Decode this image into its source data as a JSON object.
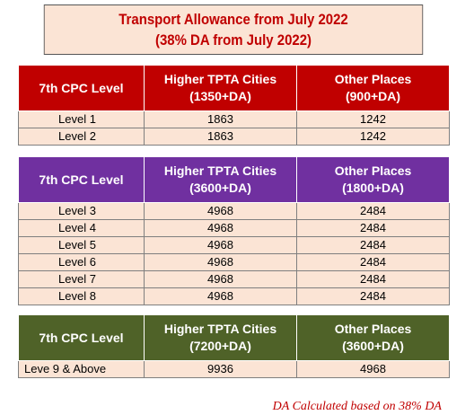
{
  "title": {
    "line1": "Transport Allowance from July 2022",
    "line2": "(38% DA from July 2022)"
  },
  "colors": {
    "title_text": "#c00000",
    "header_red": "#c00000",
    "header_purple": "#7030a0",
    "header_green": "#4f6228",
    "cell_background": "#fbe4d5"
  },
  "tables": [
    {
      "headers": {
        "level": "7th CPC Level",
        "higher_line1": "Higher TPTA Cities",
        "higher_line2": "(1350+DA)",
        "other_line1": "Other Places",
        "other_line2": "(900+DA)"
      },
      "rows": [
        {
          "level": "Level 1",
          "higher": "1863",
          "other": "1242"
        },
        {
          "level": "Level 2",
          "higher": "1863",
          "other": "1242"
        }
      ]
    },
    {
      "headers": {
        "level": "7th CPC Level",
        "higher_line1": "Higher TPTA Cities",
        "higher_line2": "(3600+DA)",
        "other_line1": "Other Places",
        "other_line2": "(1800+DA)"
      },
      "rows": [
        {
          "level": "Level 3",
          "higher": "4968",
          "other": "2484"
        },
        {
          "level": "Level 4",
          "higher": "4968",
          "other": "2484"
        },
        {
          "level": "Level 5",
          "higher": "4968",
          "other": "2484"
        },
        {
          "level": "Level 6",
          "higher": "4968",
          "other": "2484"
        },
        {
          "level": "Level 7",
          "higher": "4968",
          "other": "2484"
        },
        {
          "level": "Level 8",
          "higher": "4968",
          "other": "2484"
        }
      ]
    },
    {
      "headers": {
        "level": "7th CPC Level",
        "higher_line1": "Higher TPTA Cities",
        "higher_line2": "(7200+DA)",
        "other_line1": "Other Places",
        "other_line2": "(3600+DA)"
      },
      "rows": [
        {
          "level": "Leve 9 & Above",
          "higher": "9936",
          "other": "4968"
        }
      ]
    }
  ],
  "footnote": "DA Calculated based on 38% DA"
}
